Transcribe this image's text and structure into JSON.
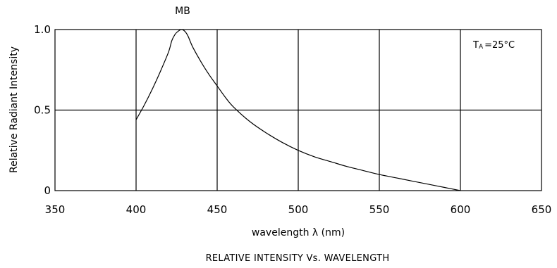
{
  "chart_data": {
    "type": "line",
    "title": "MB",
    "xlabel": "wavelength λ (nm)",
    "ylabel": "Relative Radiant Intensity",
    "caption": "RELATIVE INTENSITY Vs. WAVELENGTH",
    "annotation": {
      "base": "T",
      "sub": "A",
      "rest": "=25°C"
    },
    "xlim": [
      350,
      650
    ],
    "ylim": [
      0,
      1.0
    ],
    "x_ticks": [
      350,
      400,
      450,
      500,
      550,
      600,
      650
    ],
    "x_tick_labels": [
      "350",
      "400",
      "450",
      "500",
      "550",
      "600",
      "650"
    ],
    "y_ticks": [
      0,
      0.5,
      1.0
    ],
    "y_tick_labels": [
      "0",
      "0.5",
      "1.0"
    ],
    "grid": true,
    "series": [
      {
        "x": [
          400,
          405,
          410,
          415,
          420,
          422,
          424,
          426,
          428,
          430,
          432,
          435,
          440,
          445,
          450,
          455,
          460,
          470,
          480,
          490,
          500,
          510,
          520,
          530,
          540,
          550,
          560,
          570,
          580,
          590,
          600
        ],
        "y": [
          0.44,
          0.53,
          0.63,
          0.74,
          0.86,
          0.93,
          0.97,
          0.99,
          1.0,
          0.99,
          0.96,
          0.89,
          0.8,
          0.72,
          0.65,
          0.58,
          0.52,
          0.43,
          0.36,
          0.3,
          0.25,
          0.21,
          0.18,
          0.15,
          0.125,
          0.1,
          0.08,
          0.06,
          0.04,
          0.02,
          0.0
        ]
      }
    ]
  }
}
